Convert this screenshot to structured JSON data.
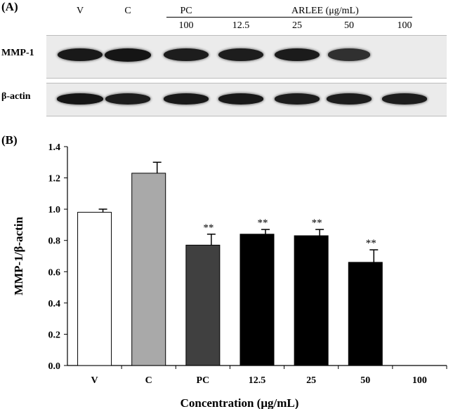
{
  "panel_a": {
    "label": "(A)",
    "lanes": [
      "V",
      "C",
      "PC",
      "",
      "",
      "",
      ""
    ],
    "concentrations": [
      "",
      "",
      "100",
      "12.5",
      "25",
      "50",
      "100"
    ],
    "group_label": "ARLEE (μg/mL)",
    "rows": [
      {
        "label": "MMP-1",
        "intensities": [
          0.95,
          1.0,
          0.9,
          0.92,
          0.93,
          0.72,
          0.0
        ]
      },
      {
        "label": "β-actin",
        "intensities": [
          1.0,
          0.92,
          0.95,
          0.95,
          0.9,
          0.9,
          0.9
        ]
      }
    ]
  },
  "panel_b": {
    "label": "(B)"
  },
  "chart_data": {
    "type": "bar",
    "categories": [
      "V",
      "C",
      "PC",
      "12.5",
      "25",
      "50",
      "100"
    ],
    "values": [
      0.98,
      1.23,
      0.77,
      0.84,
      0.83,
      0.66,
      0.0
    ],
    "errors": [
      0.02,
      0.07,
      0.07,
      0.03,
      0.04,
      0.08,
      0.0
    ],
    "significance": [
      "",
      "",
      "**",
      "**",
      "**",
      "**",
      ""
    ],
    "bar_colors": [
      "#ffffff",
      "#a9a9a9",
      "#404040",
      "#000000",
      "#000000",
      "#000000",
      "#000000"
    ],
    "title": "",
    "xlabel": "Concentration (μg/mL)",
    "ylabel": "MMP-1/β-actin",
    "ylim": [
      0,
      1.4
    ],
    "yticks": [
      "0.0",
      "0.2",
      "0.4",
      "0.6",
      "0.8",
      "1.0",
      "1.2",
      "1.4"
    ]
  }
}
